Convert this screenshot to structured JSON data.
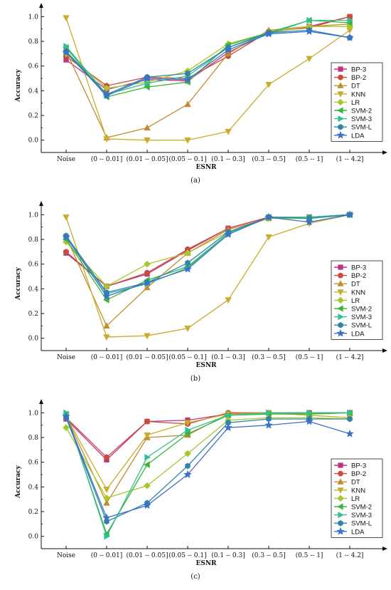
{
  "palette": {
    "BP-3": "#c0317e",
    "BP-2": "#cc4a3e",
    "DT": "#c48c2c",
    "KNN": "#c9ac2a",
    "LR": "#a6c82e",
    "SVM-2": "#3cb43c",
    "SVM-3": "#34c08e",
    "SVM-L": "#3283a8",
    "LDA": "#3a72c8"
  },
  "markers": {
    "BP-3": "square",
    "BP-2": "circle",
    "DT": "triangle-up",
    "KNN": "triangle-down",
    "LR": "diamond",
    "SVM-2": "triangle-left",
    "SVM-3": "triangle-right",
    "SVM-L": "hexagon",
    "LDA": "star"
  },
  "chart_data": [
    {
      "type": "line",
      "caption": "(a)",
      "xlabel": "ESNR",
      "ylabel": "Accuracy",
      "ylim": [
        -0.1,
        1.1
      ],
      "yticks": [
        "0.0",
        "0.2",
        "0.4",
        "0.6",
        "0.8",
        "1.0"
      ],
      "categories": [
        "Noise",
        "(0 -- 0.01]",
        "(0.01 -- 0.05]",
        "(0.05 -- 0.1]",
        "(0.1 -- 0.3]",
        "(0.3 -- 0.5]",
        "(0.5 -- 1]",
        "(1 -- 4.2]"
      ],
      "legend_position": "right",
      "series": [
        {
          "name": "BP-3",
          "values": [
            0.65,
            0.41,
            0.49,
            0.48,
            0.71,
            0.87,
            0.92,
            1.0
          ]
        },
        {
          "name": "BP-2",
          "values": [
            0.68,
            0.44,
            0.51,
            0.5,
            0.68,
            0.88,
            0.91,
            1.0
          ]
        },
        {
          "name": "DT",
          "values": [
            0.72,
            0.02,
            0.1,
            0.29,
            0.7,
            0.89,
            0.92,
            0.94
          ]
        },
        {
          "name": "KNN",
          "values": [
            0.99,
            0.01,
            0.0,
            0.0,
            0.07,
            0.45,
            0.66,
            0.89
          ]
        },
        {
          "name": "LR",
          "values": [
            0.7,
            0.42,
            0.47,
            0.56,
            0.78,
            0.87,
            0.92,
            0.92
          ]
        },
        {
          "name": "SVM-2",
          "values": [
            0.75,
            0.35,
            0.43,
            0.47,
            0.77,
            0.87,
            0.97,
            0.95
          ]
        },
        {
          "name": "SVM-3",
          "values": [
            0.76,
            0.37,
            0.46,
            0.52,
            0.75,
            0.86,
            0.97,
            0.97
          ]
        },
        {
          "name": "SVM-L",
          "values": [
            0.72,
            0.37,
            0.51,
            0.54,
            0.75,
            0.87,
            0.89,
            0.83
          ]
        },
        {
          "name": "LDA",
          "values": [
            0.71,
            0.36,
            0.5,
            0.49,
            0.73,
            0.86,
            0.88,
            0.83
          ]
        }
      ]
    },
    {
      "type": "line",
      "caption": "(b)",
      "xlabel": "ESNR",
      "ylabel": "Accuracy",
      "ylim": [
        -0.1,
        1.1
      ],
      "yticks": [
        "0.0",
        "0.2",
        "0.4",
        "0.6",
        "0.8",
        "1.0"
      ],
      "categories": [
        "Noise",
        "(0 -- 0.01]",
        "(0.01 -- 0.05]",
        "(0.05 -- 0.1]",
        "(0.1 -- 0.3]",
        "(0.3 -- 0.5]",
        "(0.5 -- 1]",
        "(1 -- 4.2]"
      ],
      "legend_position": "right",
      "series": [
        {
          "name": "BP-3",
          "values": [
            0.69,
            0.42,
            0.52,
            0.71,
            0.89,
            0.98,
            0.98,
            1.0
          ]
        },
        {
          "name": "BP-2",
          "values": [
            0.7,
            0.42,
            0.53,
            0.72,
            0.89,
            0.98,
            0.98,
            1.0
          ]
        },
        {
          "name": "DT",
          "values": [
            0.82,
            0.1,
            0.41,
            0.69,
            0.88,
            0.97,
            0.97,
            1.0
          ]
        },
        {
          "name": "KNN",
          "values": [
            0.98,
            0.01,
            0.02,
            0.08,
            0.31,
            0.82,
            0.93,
            1.0
          ]
        },
        {
          "name": "LR",
          "values": [
            0.78,
            0.42,
            0.6,
            0.69,
            0.86,
            0.97,
            0.97,
            1.0
          ]
        },
        {
          "name": "SVM-2",
          "values": [
            0.8,
            0.31,
            0.47,
            0.58,
            0.85,
            0.98,
            0.98,
            1.0
          ]
        },
        {
          "name": "SVM-3",
          "values": [
            0.82,
            0.36,
            0.44,
            0.57,
            0.85,
            0.98,
            0.98,
            1.0
          ]
        },
        {
          "name": "SVM-L",
          "values": [
            0.83,
            0.37,
            0.45,
            0.61,
            0.86,
            0.98,
            0.97,
            1.0
          ]
        },
        {
          "name": "LDA",
          "values": [
            0.82,
            0.34,
            0.45,
            0.56,
            0.84,
            0.98,
            0.94,
            1.0
          ]
        }
      ]
    },
    {
      "type": "line",
      "caption": "(c)",
      "xlabel": "ESNR",
      "ylabel": "Accuracy",
      "ylim": [
        -0.1,
        1.1
      ],
      "yticks": [
        "0.0",
        "0.2",
        "0.4",
        "0.6",
        "0.8",
        "1.0"
      ],
      "categories": [
        "Noise",
        "(0 -- 0.01]",
        "(0.01 -- 0.05]",
        "(0.05 -- 0.1]",
        "(0.1 -- 0.3]",
        "(0.3 -- 0.5]",
        "(0.5 -- 1]",
        "(1 -- 4.2]"
      ],
      "legend_position": "right",
      "series": [
        {
          "name": "BP-3",
          "values": [
            0.95,
            0.62,
            0.93,
            0.94,
            0.99,
            1.0,
            1.0,
            1.0
          ]
        },
        {
          "name": "BP-2",
          "values": [
            0.96,
            0.64,
            0.93,
            0.91,
            1.0,
            1.0,
            1.0,
            1.0
          ]
        },
        {
          "name": "DT",
          "values": [
            0.97,
            0.27,
            0.8,
            0.82,
            0.99,
            1.0,
            0.99,
            1.0
          ]
        },
        {
          "name": "KNN",
          "values": [
            0.97,
            0.38,
            0.82,
            0.92,
            0.99,
            1.0,
            0.98,
            0.96
          ]
        },
        {
          "name": "LR",
          "values": [
            0.88,
            0.31,
            0.41,
            0.67,
            0.94,
            0.96,
            0.96,
            0.95
          ]
        },
        {
          "name": "SVM-2",
          "values": [
            0.99,
            0.02,
            0.58,
            0.83,
            0.98,
            0.99,
            0.99,
            1.0
          ]
        },
        {
          "name": "SVM-3",
          "values": [
            1.0,
            0.0,
            0.64,
            0.86,
            0.98,
            1.0,
            1.0,
            1.0
          ]
        },
        {
          "name": "SVM-L",
          "values": [
            0.96,
            0.12,
            0.27,
            0.57,
            0.92,
            0.95,
            0.95,
            0.95
          ]
        },
        {
          "name": "LDA",
          "values": [
            0.97,
            0.15,
            0.25,
            0.5,
            0.88,
            0.9,
            0.93,
            0.83
          ]
        }
      ]
    }
  ]
}
